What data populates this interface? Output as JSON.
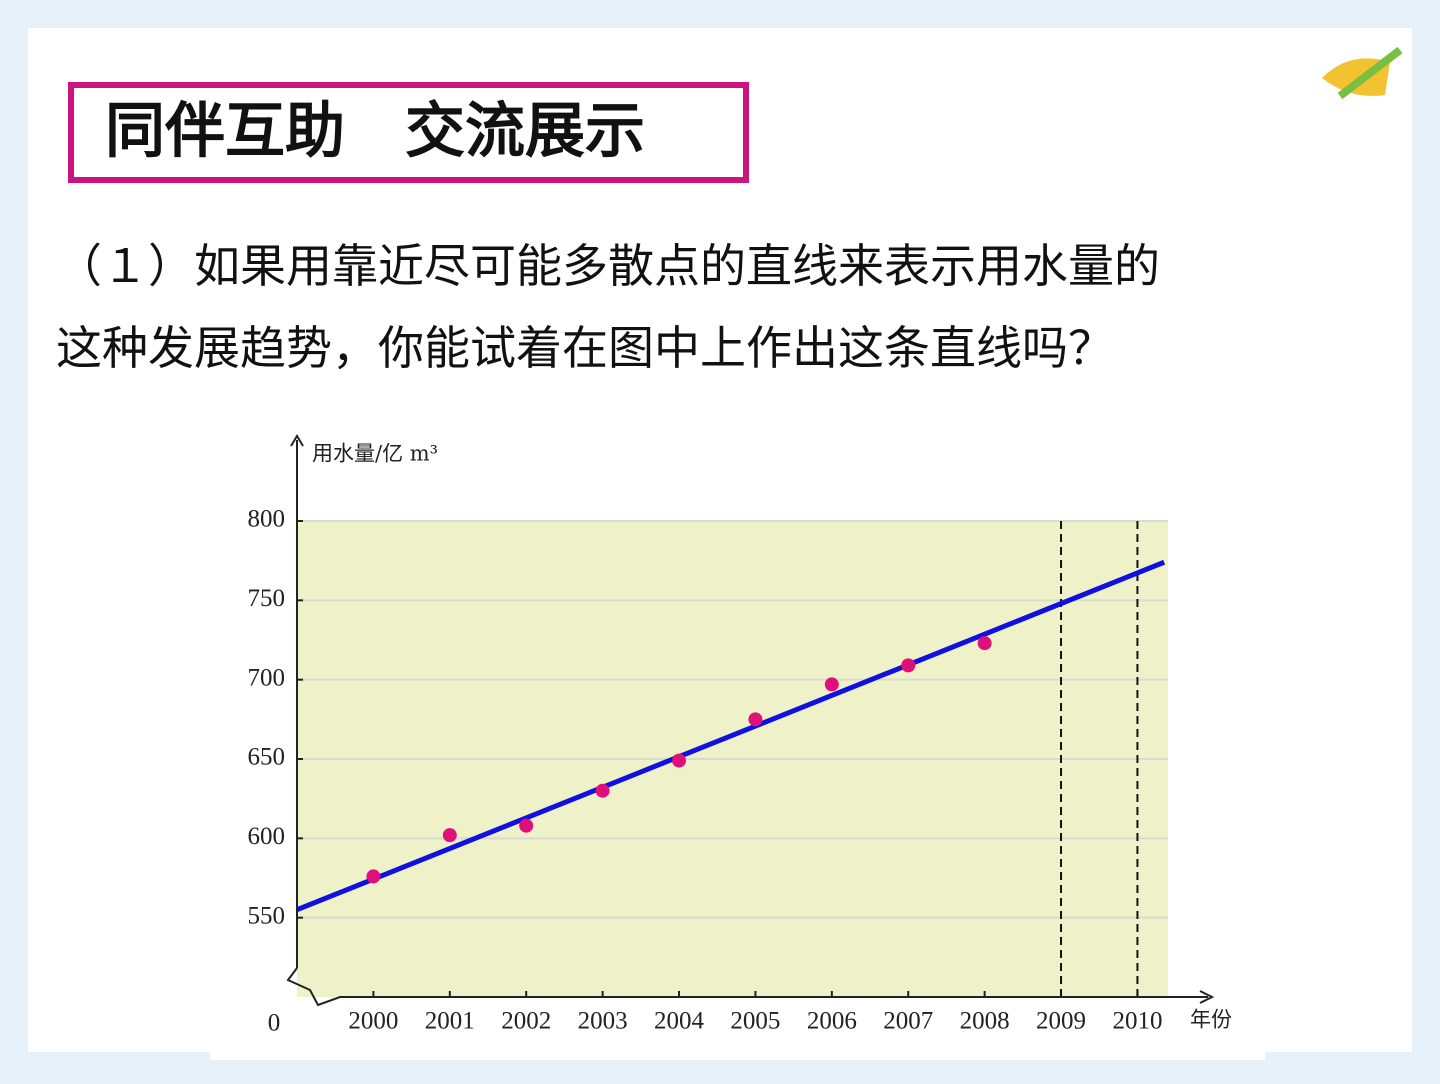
{
  "header": {
    "title": "同伴互助　交流展示"
  },
  "question": [
    "（１）如果用靠近尽可能多散点的直线来表示用水量的",
    "这种发展趋势，你能试着在图中上作出这条直线吗？"
  ],
  "chart_data": {
    "type": "scatter",
    "y_label": "用水量/亿 m³",
    "x_label": "年份",
    "origin_label": "0",
    "x": [
      2000,
      2001,
      2002,
      2003,
      2004,
      2005,
      2006,
      2007,
      2008
    ],
    "values": [
      576,
      602,
      608,
      630,
      649,
      675,
      697,
      709,
      723
    ],
    "color": "#e0107a",
    "trend": {
      "x": [
        1999,
        2010.35
      ],
      "values": [
        555,
        774
      ],
      "color": "#1010e0"
    },
    "vlines": [
      2009,
      2010
    ],
    "xlim": [
      1999,
      2010.4
    ],
    "xticks": [
      2000,
      2001,
      2002,
      2003,
      2004,
      2005,
      2006,
      2007,
      2008,
      2009,
      2010
    ],
    "ylim": [
      500,
      800
    ],
    "yticks": [
      550,
      600,
      650,
      700,
      750,
      800
    ],
    "grid": true
  }
}
